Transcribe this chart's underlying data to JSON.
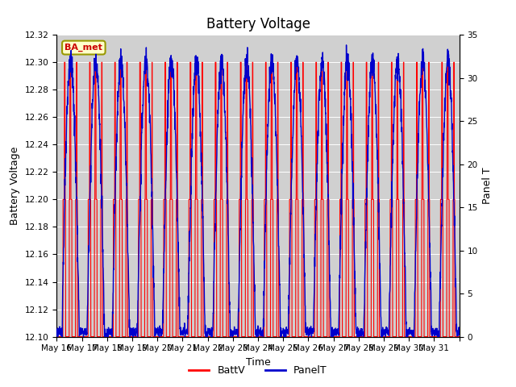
{
  "title": "Battery Voltage",
  "xlabel": "Time",
  "ylabel_left": "Battery Voltage",
  "ylabel_right": "Panel T",
  "ylim_left": [
    12.1,
    12.32
  ],
  "ylim_right": [
    0,
    35
  ],
  "yticks_left": [
    12.1,
    12.12,
    12.14,
    12.16,
    12.18,
    12.2,
    12.22,
    12.24,
    12.26,
    12.28,
    12.3,
    12.32
  ],
  "yticks_right": [
    0,
    5,
    10,
    15,
    20,
    25,
    30,
    35
  ],
  "xtick_positions": [
    0,
    1,
    2,
    3,
    4,
    5,
    6,
    7,
    8,
    9,
    10,
    11,
    12,
    13,
    14,
    15,
    16
  ],
  "xtick_labels": [
    "May 16",
    "May 17",
    "May 18",
    "May 19",
    "May 20",
    "May 21",
    "May 22",
    "May 23",
    "May 24",
    "May 25",
    "May 26",
    "May 27",
    "May 28",
    "May 29",
    "May 30",
    "May 31",
    ""
  ],
  "band_color_dark": "#d0d0d0",
  "band_color_light": "#e8e8e8",
  "line_color_red": "#ff0000",
  "line_color_blue": "#0000cc",
  "bg_color": "#ffffff",
  "annotation_text": "BA_met",
  "annotation_bg": "#ffffcc",
  "annotation_border": "#999900",
  "legend_label_red": "BattV",
  "legend_label_blue": "PanelT",
  "title_fontsize": 12,
  "axis_fontsize": 9,
  "tick_fontsize": 7.5,
  "n_days": 16,
  "batt_base": 12.1,
  "batt_mid": 12.2,
  "batt_high": 12.3,
  "panel_max": 32,
  "panel_min": 0
}
